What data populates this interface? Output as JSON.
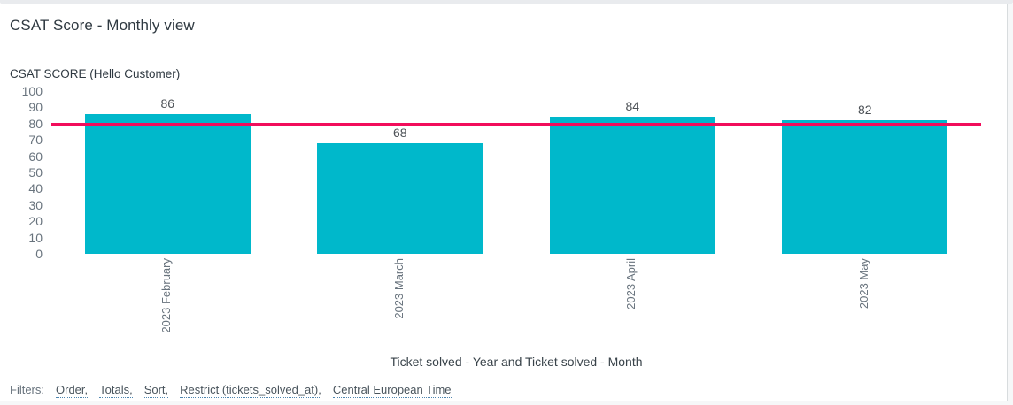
{
  "header": {
    "title": "CSAT Score - Monthly view"
  },
  "chart_data": {
    "type": "bar",
    "title": "CSAT SCORE (Hello Customer)",
    "categories": [
      "2023 February",
      "2023 March",
      "2023 April",
      "2023 May"
    ],
    "values": [
      86,
      68,
      84,
      82
    ],
    "xlabel": "Ticket solved - Year and Ticket solved - Month",
    "ylabel": "",
    "ylim": [
      0,
      100
    ],
    "y_tick_step": 10,
    "grid": false,
    "legend": "none",
    "x_label_rotation": -90,
    "bar_color": "#00B8CB",
    "value_label_color": "#4C5156",
    "ref_line": {
      "value": 80,
      "color": "#F20D5B"
    }
  },
  "filters": {
    "label": "Filters:",
    "links": [
      "Order,",
      "Totals,",
      "Sort,",
      "Restrict (tickets_solved_at),",
      "Central European Time"
    ]
  }
}
